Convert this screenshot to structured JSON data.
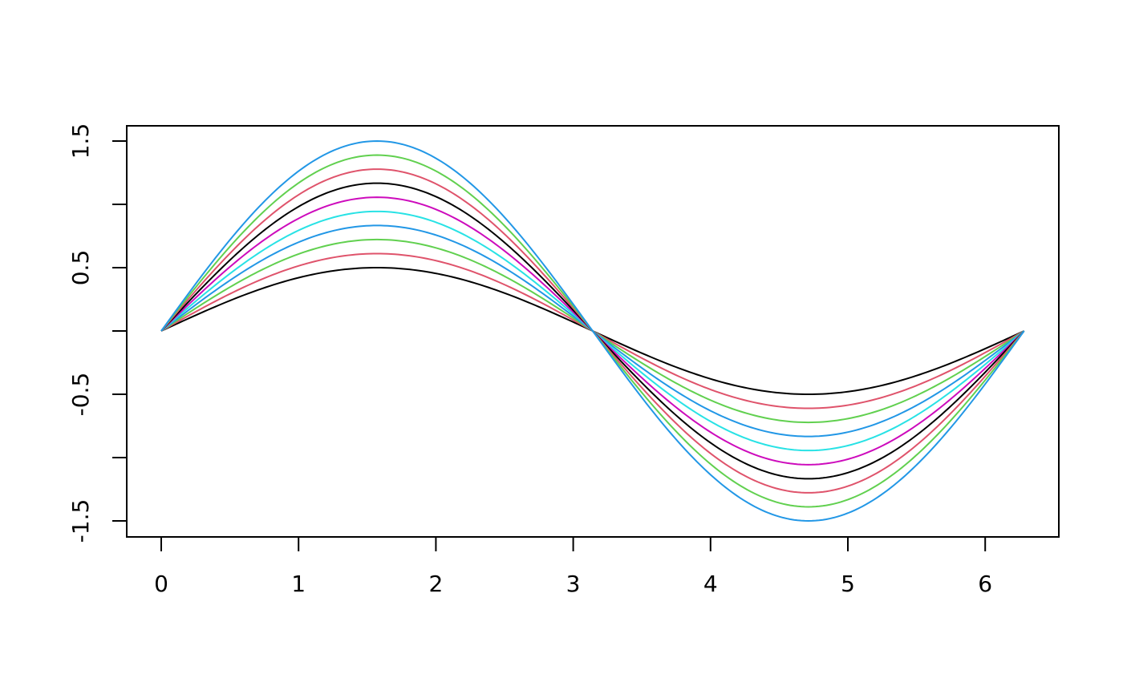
{
  "chart_data": {
    "type": "line",
    "title": "",
    "xlabel": "",
    "ylabel": "",
    "xlim": [
      0,
      6.2832
    ],
    "ylim": [
      -1.5,
      1.5
    ],
    "grid": false,
    "legend": "none",
    "function": "amplitude * sin(x)",
    "x_ticks": [
      {
        "value": 0,
        "label": "0"
      },
      {
        "value": 1,
        "label": "1"
      },
      {
        "value": 2,
        "label": "2"
      },
      {
        "value": 3,
        "label": "3"
      },
      {
        "value": 4,
        "label": "4"
      },
      {
        "value": 5,
        "label": "5"
      },
      {
        "value": 6,
        "label": "6"
      }
    ],
    "y_ticks": [
      {
        "value": -1.5,
        "label": "-1.5"
      },
      {
        "value": -1.0,
        "label": ""
      },
      {
        "value": -0.5,
        "label": "-0.5"
      },
      {
        "value": 0.0,
        "label": ""
      },
      {
        "value": 0.5,
        "label": "0.5"
      },
      {
        "value": 1.0,
        "label": ""
      },
      {
        "value": 1.5,
        "label": "1.5"
      }
    ],
    "series": [
      {
        "amplitude": 0.5,
        "color": "#000000"
      },
      {
        "amplitude": 0.611,
        "color": "#DF536B"
      },
      {
        "amplitude": 0.722,
        "color": "#61D04F"
      },
      {
        "amplitude": 0.833,
        "color": "#2297E6"
      },
      {
        "amplitude": 0.944,
        "color": "#28E2E5"
      },
      {
        "amplitude": 1.056,
        "color": "#CD0BBC"
      },
      {
        "amplitude": 1.167,
        "color": "#000000"
      },
      {
        "amplitude": 1.278,
        "color": "#DF536B"
      },
      {
        "amplitude": 1.389,
        "color": "#61D04F"
      },
      {
        "amplitude": 1.5,
        "color": "#2297E6"
      }
    ]
  }
}
